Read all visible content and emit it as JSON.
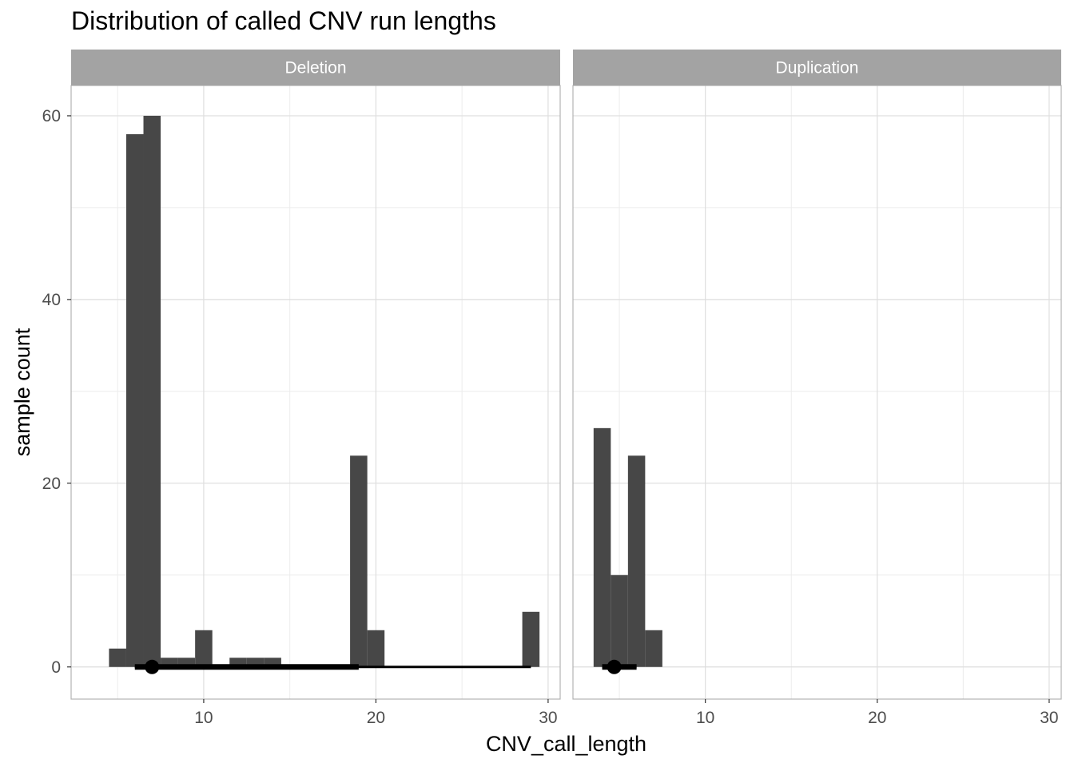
{
  "chart_data": {
    "type": "bar",
    "title": "Distribution of called CNV run lengths",
    "xlabel": "CNV_call_length",
    "ylabel": "sample count",
    "xlim": [
      2.3,
      30.7
    ],
    "ylim": [
      -3.5,
      63.3
    ],
    "x_ticks": [
      10,
      20,
      30
    ],
    "y_ticks": [
      0,
      20,
      40,
      60
    ],
    "grid": true,
    "bin_width": 1,
    "colors": {
      "bar": "#474747",
      "strip": "#a3a3a3",
      "strip_text": "#ffffff",
      "grid_major": "#dedede",
      "grid_minor": "#ececec",
      "panel_border": "#b3b3b3",
      "summary": "#000000"
    },
    "panels": [
      {
        "label": "Deletion",
        "bins": [
          {
            "x": 5,
            "count": 2
          },
          {
            "x": 6,
            "count": 58
          },
          {
            "x": 7,
            "count": 60
          },
          {
            "x": 8,
            "count": 1
          },
          {
            "x": 9,
            "count": 1
          },
          {
            "x": 10,
            "count": 4
          },
          {
            "x": 11,
            "count": 0
          },
          {
            "x": 12,
            "count": 1
          },
          {
            "x": 13,
            "count": 1
          },
          {
            "x": 14,
            "count": 1
          },
          {
            "x": 19,
            "count": 23
          },
          {
            "x": 20,
            "count": 4
          },
          {
            "x": 29,
            "count": 6
          }
        ],
        "summary": {
          "point": 7,
          "inner": [
            6,
            19
          ],
          "outer": [
            6,
            29
          ]
        }
      },
      {
        "label": "Duplication",
        "bins": [
          {
            "x": 4,
            "count": 26
          },
          {
            "x": 5,
            "count": 10
          },
          {
            "x": 6,
            "count": 23
          },
          {
            "x": 7,
            "count": 4
          }
        ],
        "summary": {
          "point": 4.7,
          "inner": [
            4,
            6
          ],
          "outer": [
            4,
            6
          ]
        }
      }
    ]
  }
}
